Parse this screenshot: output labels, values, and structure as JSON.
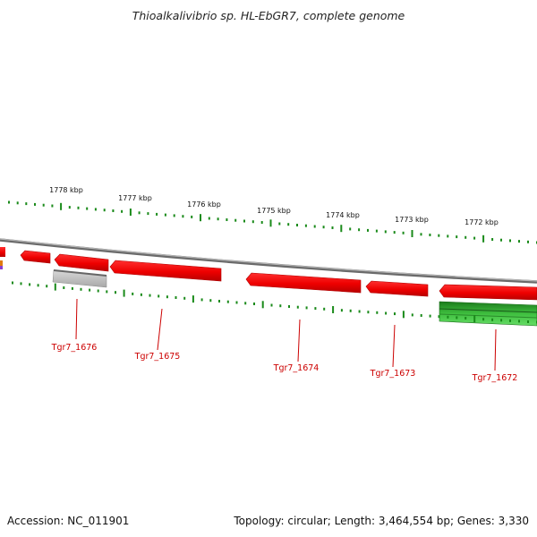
{
  "title": "Thioalkalivibrio sp. HL-EbGR7, complete genome",
  "scale_labels": [
    {
      "label": "1778 kbp"
    },
    {
      "label": "1777 kbp"
    },
    {
      "label": "1776 kbp"
    },
    {
      "label": "1775 kbp"
    },
    {
      "label": "1774 kbp"
    },
    {
      "label": "1773 kbp"
    },
    {
      "label": "1772 kbp"
    }
  ],
  "genes": [
    {
      "label": "Tgr7_1676",
      "strand": "reverse",
      "color": "red"
    },
    {
      "label": "Tgr7_1675",
      "strand": "reverse",
      "color": "red"
    },
    {
      "label": "Tgr7_1674",
      "strand": "reverse",
      "color": "red"
    },
    {
      "label": "Tgr7_1673",
      "strand": "reverse",
      "color": "red"
    },
    {
      "label": "Tgr7_1672",
      "strand": "reverse",
      "color": "red"
    }
  ],
  "features": [
    {
      "kind": "gray-feature",
      "color": "#aaaaaa"
    },
    {
      "kind": "green-feature",
      "color": "#2ca02c"
    }
  ],
  "colors": {
    "gene": "#ff0000",
    "gene_dark": "#cc0000",
    "backbone": "#808080",
    "ticks": "#1a8a1a",
    "label": "#cc0000"
  },
  "footer": {
    "accession": "Accession: NC_011901",
    "topology": "Topology: circular; Length: 3,464,554 bp; Genes: 3,330"
  }
}
